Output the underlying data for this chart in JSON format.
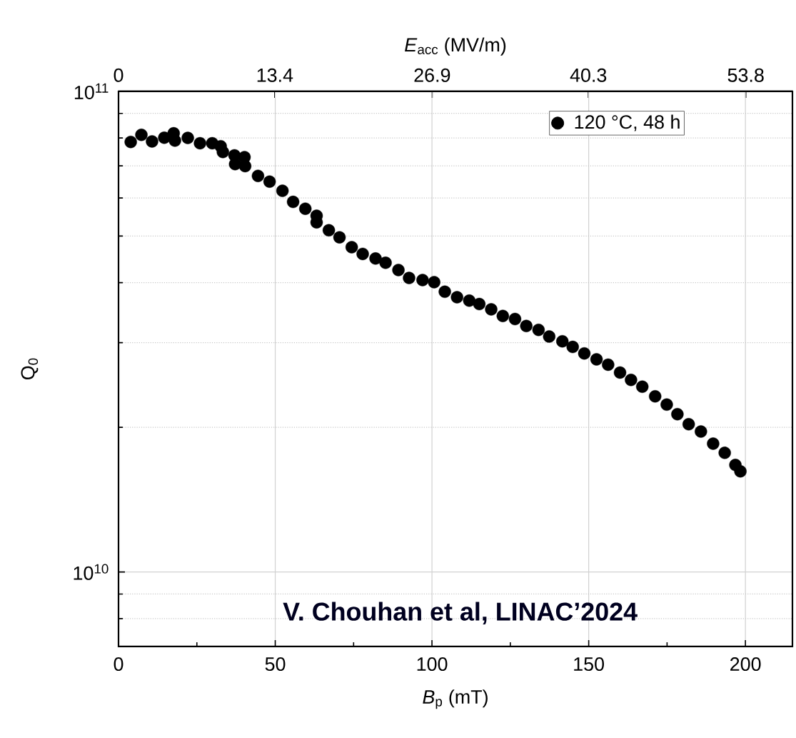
{
  "chart_data": {
    "type": "scatter",
    "xlabel": "*B*$_{p}$ (mT)",
    "ylabel": "Q$_{0}$",
    "x2label": "*E*$_{acc}$ (MV/m)",
    "xlim": [
      0,
      215
    ],
    "ylim": [
      7000000000.0,
      100000000000.0
    ],
    "x2lim": [
      0,
      57.8
    ],
    "log": "y",
    "grid": true,
    "legend": "top right",
    "marker": "circle",
    "xticks": [
      0,
      {
        "value": 25,
        "label": null
      },
      50,
      {
        "value": 75,
        "label": null
      },
      100,
      {
        "value": 125,
        "label": null
      },
      150,
      {
        "value": 175,
        "label": null
      },
      200
    ],
    "x2ticks": [
      0,
      13.4,
      26.9,
      40.3,
      53.8
    ],
    "yticks": [
      {
        "value": 8000000000.0,
        "label": null
      },
      {
        "value": 9000000000.0,
        "label": null
      },
      {
        "value": 10000000000.0,
        "label": "10$^{10}$"
      },
      {
        "value": 20000000000.0,
        "label": null
      },
      {
        "value": 30000000000.0,
        "label": null
      },
      {
        "value": 40000000000.0,
        "label": null
      },
      {
        "value": 50000000000.0,
        "label": null
      },
      {
        "value": 60000000000.0,
        "label": null
      },
      {
        "value": 70000000000.0,
        "label": null
      },
      {
        "value": 80000000000.0,
        "label": null
      },
      {
        "value": 90000000000.0,
        "label": null
      },
      {
        "value": 100000000000.0,
        "label": "10$^{11}$"
      }
    ],
    "annotations": [
      "V. Chouhan et al, LINAC’2024"
    ],
    "series": [
      {
        "name": "120 °C, 48 h",
        "color": "#000000",
        "x": [
          3.9,
          7.3,
          10.7,
          14.6,
          17.6,
          18.0,
          22.1,
          26.0,
          29.9,
          32.6,
          33.3,
          37.0,
          37.2,
          40.2,
          40.4,
          44.5,
          48.2,
          52.3,
          55.7,
          59.6,
          63.2,
          63.2,
          67.1,
          70.5,
          74.4,
          77.9,
          82.0,
          85.2,
          89.3,
          92.7,
          97.0,
          100.7,
          104.1,
          108.0,
          111.9,
          115.1,
          118.9,
          122.6,
          126.5,
          130.1,
          134.0,
          137.4,
          141.6,
          144.9,
          148.6,
          152.5,
          156.2,
          160.0,
          163.5,
          167.1,
          171.2,
          174.9,
          178.3,
          181.9,
          185.8,
          189.7,
          193.4,
          196.8,
          198.4
        ],
        "values": [
          78500000000.0,
          81200000000.0,
          78700000000.0,
          80100000000.0,
          81800000000.0,
          79000000000.0,
          80000000000.0,
          78000000000.0,
          78000000000.0,
          76900000000.0,
          74800000000.0,
          73600000000.0,
          70600000000.0,
          73000000000.0,
          69900000000.0,
          66700000000.0,
          64900000000.0,
          62100000000.0,
          58900000000.0,
          57000000000.0,
          55100000000.0,
          53400000000.0,
          51400000000.0,
          49700000000.0,
          47400000000.0,
          45900000000.0,
          44900000000.0,
          44000000000.0,
          42500000000.0,
          40900000000.0,
          40500000000.0,
          40100000000.0,
          38300000000.0,
          37300000000.0,
          36700000000.0,
          36100000000.0,
          35200000000.0,
          34100000000.0,
          33600000000.0,
          32500000000.0,
          31900000000.0,
          30900000000.0,
          30200000000.0,
          29400000000.0,
          28500000000.0,
          27700000000.0,
          27000000000.0,
          26000000000.0,
          25100000000.0,
          24300000000.0,
          23200000000.0,
          22300000000.0,
          21300000000.0,
          20300000000.0,
          19600000000.0,
          18500000000.0,
          17700000000.0,
          16700000000.0,
          16200000000.0
        ]
      }
    ]
  }
}
